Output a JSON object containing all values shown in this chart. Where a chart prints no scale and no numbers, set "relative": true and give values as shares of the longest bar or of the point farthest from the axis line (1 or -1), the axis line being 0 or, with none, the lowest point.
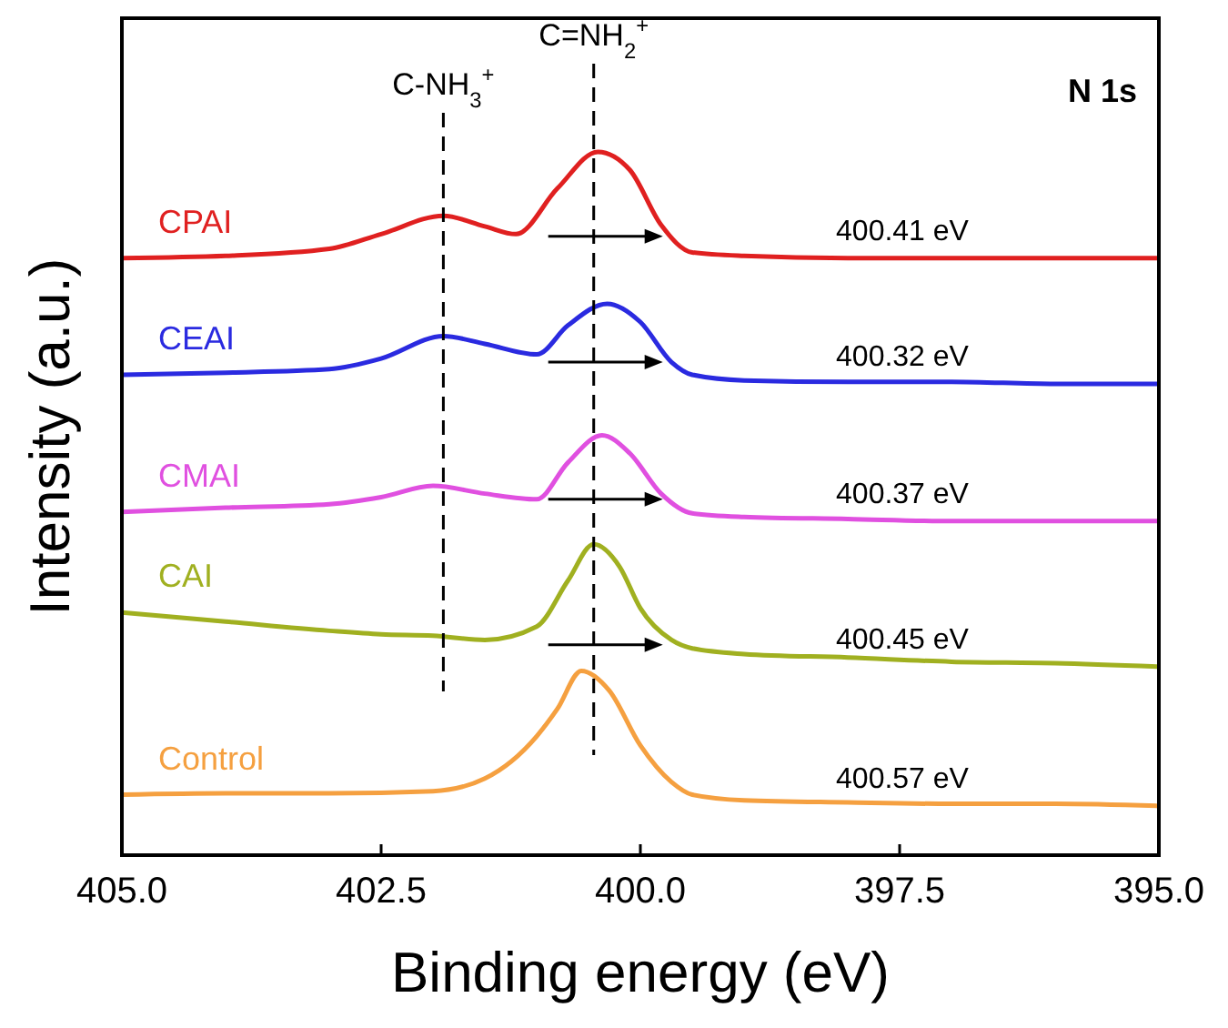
{
  "chart_data": {
    "type": "line",
    "relative": true,
    "xlabel": "Binding energy (eV)",
    "ylabel": "Intensity (a.u.)",
    "xlim": [
      405,
      395
    ],
    "xticks": [
      {
        "value": 405,
        "label": "405.0"
      },
      {
        "value": 402.5,
        "label": "402.5"
      },
      {
        "value": 400,
        "label": "400.0"
      },
      {
        "value": 397.5,
        "label": "397.5"
      },
      {
        "value": 395,
        "label": "395.0"
      }
    ],
    "tick_labels": "x",
    "grid": false,
    "legend": false,
    "line_style": "solid",
    "marker": "none",
    "series": [
      {
        "name": "CPAI",
        "color": "#e02020",
        "x": [
          405,
          404,
          403,
          402.5,
          401.9,
          401.5,
          401.2,
          400.8,
          400.41,
          400.1,
          399.8,
          399.5,
          399,
          398,
          397,
          396,
          395
        ],
        "values": [
          0.849,
          0.852,
          0.862,
          0.883,
          0.909,
          0.894,
          0.883,
          0.948,
          1.0,
          0.974,
          0.896,
          0.857,
          0.852,
          0.849,
          0.849,
          0.849,
          0.849
        ]
      },
      {
        "name": "CEAI",
        "color": "#2a2ae0",
        "x": [
          405,
          404,
          403,
          402.5,
          401.9,
          401.5,
          401,
          400.7,
          400.32,
          400,
          399.7,
          399.5,
          399,
          398,
          397,
          396,
          395
        ],
        "values": [
          0.683,
          0.686,
          0.691,
          0.706,
          0.738,
          0.727,
          0.712,
          0.753,
          0.784,
          0.758,
          0.701,
          0.683,
          0.675,
          0.673,
          0.673,
          0.67,
          0.67
        ]
      },
      {
        "name": "CMAI",
        "color": "#e050e0",
        "x": [
          405,
          404,
          403,
          402.5,
          402,
          401.5,
          401,
          400.7,
          400.37,
          400.1,
          399.8,
          399.5,
          399,
          398,
          397,
          396,
          395
        ],
        "values": [
          0.488,
          0.494,
          0.499,
          0.509,
          0.525,
          0.514,
          0.506,
          0.558,
          0.597,
          0.571,
          0.514,
          0.486,
          0.481,
          0.478,
          0.475,
          0.475,
          0.475
        ]
      },
      {
        "name": "CAI",
        "color": "#a0b020",
        "x": [
          405,
          404,
          403,
          402.5,
          402,
          401.5,
          401,
          400.7,
          400.45,
          400.2,
          400,
          399.7,
          399.5,
          399,
          398,
          397,
          396,
          395
        ],
        "values": [
          0.345,
          0.332,
          0.319,
          0.314,
          0.312,
          0.306,
          0.325,
          0.39,
          0.442,
          0.41,
          0.351,
          0.306,
          0.294,
          0.286,
          0.281,
          0.275,
          0.273,
          0.268
        ]
      },
      {
        "name": "Control",
        "color": "#f5a040",
        "x": [
          405,
          404,
          403,
          402,
          401.5,
          401,
          400.8,
          400.57,
          400.3,
          400,
          399.7,
          399.5,
          399,
          398,
          397,
          396,
          395
        ],
        "values": [
          0.086,
          0.088,
          0.088,
          0.091,
          0.109,
          0.169,
          0.208,
          0.262,
          0.234,
          0.156,
          0.104,
          0.086,
          0.078,
          0.075,
          0.073,
          0.073,
          0.07
        ]
      }
    ],
    "ref_lines": [
      {
        "axis": "x",
        "value": 401.9,
        "label": "C-NH$_{3}$$^{+}$",
        "line_style": "dashed",
        "color": "#000000"
      },
      {
        "axis": "x",
        "value": 400.45,
        "label": "C=NH$_{2}$$^{+}$",
        "line_style": "dashed",
        "color": "#000000"
      }
    ],
    "annotations": [
      "N 1s",
      "400.41 eV",
      "400.32 eV",
      "400.37 eV",
      "400.45 eV",
      "400.57 eV"
    ]
  }
}
